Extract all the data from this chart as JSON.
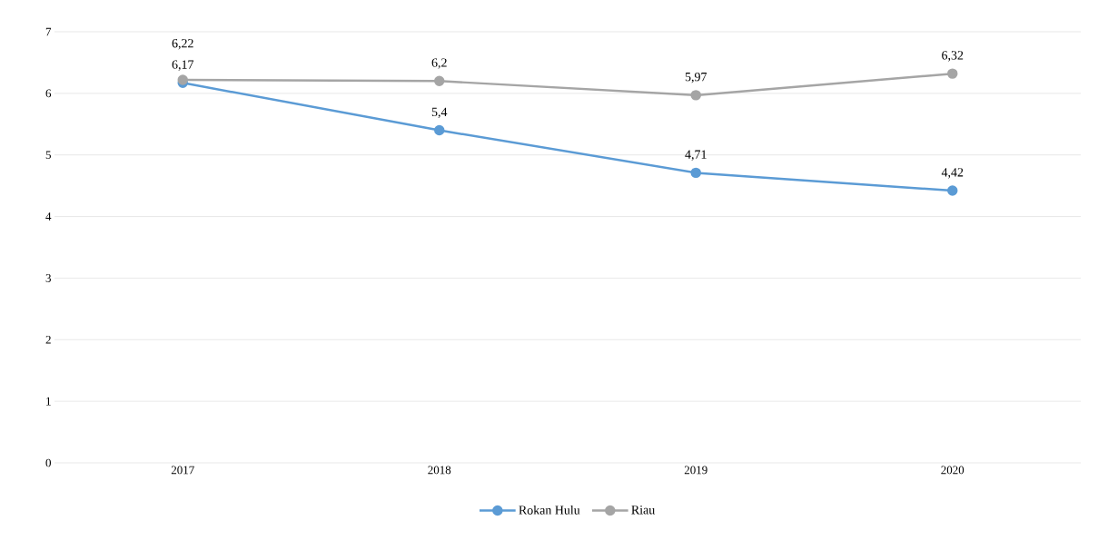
{
  "chart_data": {
    "type": "line",
    "categories": [
      "2017",
      "2018",
      "2019",
      "2020"
    ],
    "series": [
      {
        "name": "Rokan Hulu",
        "color": "#5b9bd5",
        "values": [
          6.17,
          5.4,
          4.71,
          4.42
        ],
        "value_labels": [
          "6,17",
          "5,4",
          "4,71",
          "4,42"
        ]
      },
      {
        "name": "Riau",
        "color": "#a5a5a5",
        "values": [
          6.22,
          6.2,
          5.97,
          6.32
        ],
        "value_labels": [
          "6,22",
          "6,2",
          "5,97",
          "6,32"
        ]
      }
    ],
    "ylim": [
      0,
      7
    ],
    "yticks": [
      0,
      1,
      2,
      3,
      4,
      5,
      6,
      7
    ],
    "grid": "y",
    "legend": "bottom",
    "marker": "circle",
    "line_style": "solid"
  }
}
